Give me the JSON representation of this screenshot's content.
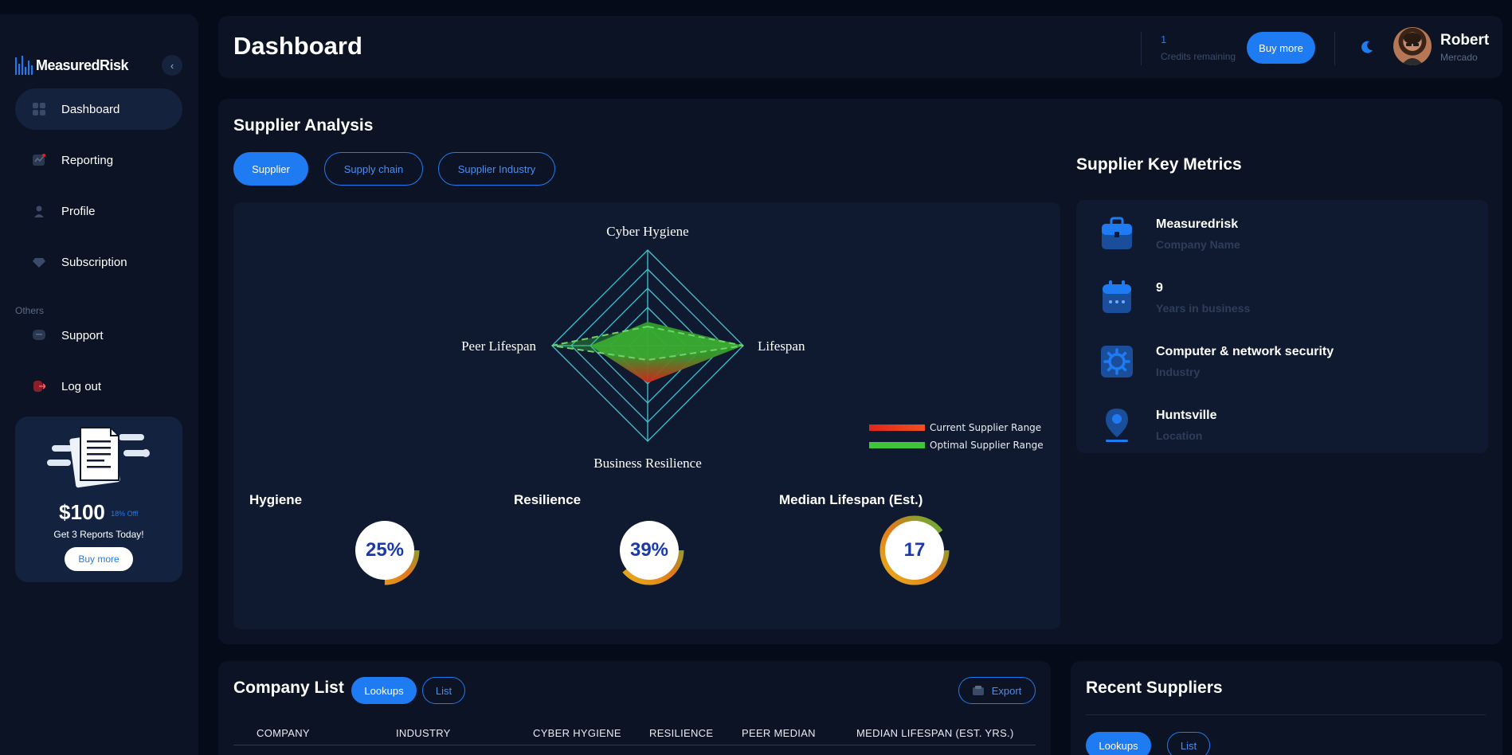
{
  "brand": {
    "name": "MeasuredRisk",
    "accent": "#1f7bf2"
  },
  "sidebar": {
    "collapse_icon": "chevron-left-icon",
    "items": [
      {
        "label": "Dashboard",
        "icon": "grid-icon",
        "active": true
      },
      {
        "label": "Reporting",
        "icon": "chart-icon"
      },
      {
        "label": "Profile",
        "icon": "user-icon"
      },
      {
        "label": "Subscription",
        "icon": "diamond-icon"
      }
    ],
    "others_label": "Others",
    "others": [
      {
        "label": "Support",
        "icon": "chat-icon"
      },
      {
        "label": "Log out",
        "icon": "logout-icon"
      }
    ],
    "promo": {
      "price": "$100",
      "discount": "18% Off!",
      "text": "Get 3 Reports Today!",
      "button": "Buy more"
    }
  },
  "header": {
    "title": "Dashboard",
    "credits_value": "1",
    "credits_label": "Credits remaining",
    "buy_button": "Buy more",
    "user_name": "Robert",
    "user_sub": "Mercado"
  },
  "analysis": {
    "title": "Supplier Analysis",
    "tabs": [
      "Supplier",
      "Supply chain",
      "Supplier Industry"
    ],
    "radar": {
      "axes": [
        "Cyber Hygiene",
        "Lifespan",
        "Business Resilience",
        "Peer Lifespan"
      ],
      "current_range": [
        0.25,
        1.0,
        0.39,
        0.6
      ],
      "optimal_range": [
        0.2,
        1.0,
        0.15,
        1.0
      ],
      "legend": [
        "Current Supplier Range",
        "Optimal Supplier Range"
      ],
      "legend_colors": [
        "#e0261c",
        "#3fc43a"
      ]
    },
    "gauges": [
      {
        "title": "Hygiene",
        "value": "25%",
        "fraction": 0.25
      },
      {
        "title": "Resilience",
        "value": "39%",
        "fraction": 0.39
      },
      {
        "title": "Median Lifespan (Est.)",
        "value": "17",
        "fraction": 0.9
      }
    ]
  },
  "metrics": {
    "title": "Supplier Key Metrics",
    "items": [
      {
        "value": "Measuredrisk",
        "label": "Company Name",
        "icon": "briefcase-icon"
      },
      {
        "value": "9",
        "label": "Years in business",
        "icon": "calendar-icon"
      },
      {
        "value": "Computer & network security",
        "label": "Industry",
        "icon": "gear-icon"
      },
      {
        "value": "Huntsville",
        "label": "Location",
        "icon": "location-pin-icon"
      }
    ]
  },
  "company_list": {
    "title": "Company List",
    "toggle": [
      "Lookups",
      "List"
    ],
    "export": "Export",
    "columns": [
      "COMPANY",
      "INDUSTRY",
      "CYBER HYGIENE",
      "RESILIENCE",
      "PEER MEDIAN",
      "MEDIAN LIFESPAN (EST. YRS.)"
    ]
  },
  "recent": {
    "title": "Recent Suppliers",
    "toggle": [
      "Lookups",
      "List"
    ]
  }
}
